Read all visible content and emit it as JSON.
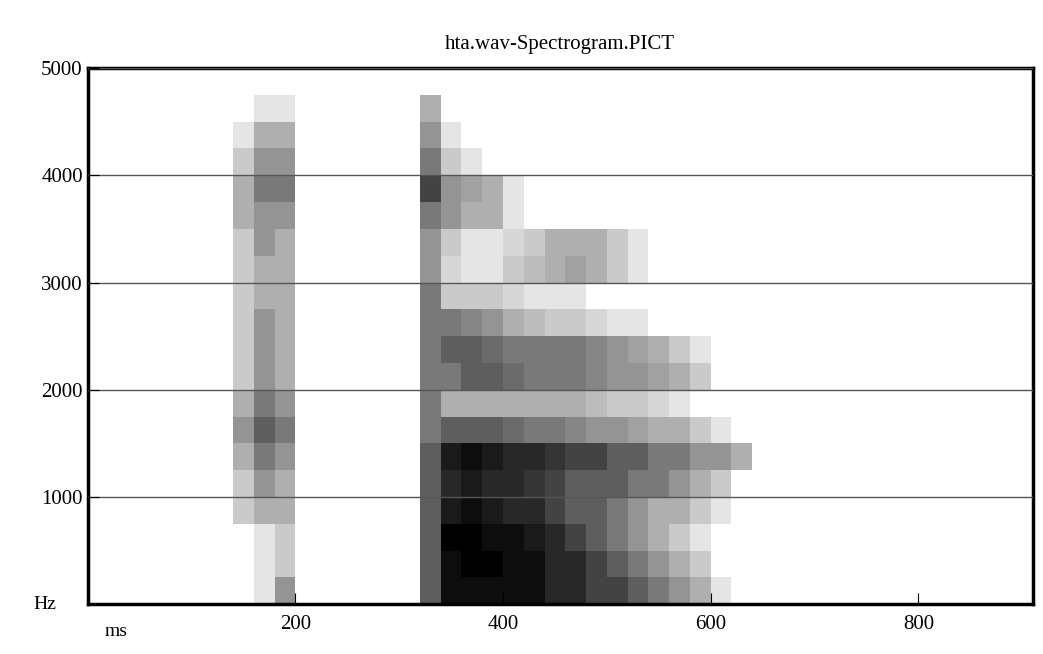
{
  "chart_data": {
    "type": "spectrogram",
    "title": "hta.wav-Spectrogram.PICT",
    "xlabel": "ms",
    "ylabel": "Hz",
    "xlim": [
      0,
      910
    ],
    "xticks": [
      200,
      400,
      600,
      800
    ],
    "ylim": [
      0,
      5000
    ],
    "yticks": [
      1000,
      2000,
      3000,
      4000,
      5000
    ],
    "grid": true,
    "time_edges": [
      140,
      160,
      180,
      200,
      220,
      240,
      260,
      280,
      300,
      320,
      340,
      360,
      380,
      400,
      420,
      440,
      460,
      480,
      500,
      520,
      540,
      560,
      580,
      600,
      620,
      640,
      660
    ],
    "freq_edges": [
      0,
      250,
      500,
      750,
      1000,
      1250,
      1500,
      1750,
      2000,
      2250,
      2500,
      2750,
      3000,
      3250,
      3500,
      3750,
      4000,
      4250,
      4500,
      4750
    ],
    "cells": [
      [
        0,
        0.1,
        0.4,
        0,
        0,
        0,
        0,
        0,
        0,
        0.6,
        0.9,
        0.9,
        0.9,
        0.9,
        0.9,
        0.8,
        0.8,
        0.7,
        0.7,
        0.6,
        0.5,
        0.4,
        0.3,
        0.1,
        0,
        0
      ],
      [
        0,
        0.1,
        0.2,
        0,
        0,
        0,
        0,
        0,
        0,
        0.6,
        0.9,
        0.95,
        0.95,
        0.9,
        0.9,
        0.8,
        0.8,
        0.7,
        0.6,
        0.5,
        0.4,
        0.3,
        0.2,
        0,
        0,
        0
      ],
      [
        0,
        0.1,
        0.2,
        0,
        0,
        0,
        0,
        0,
        0,
        0.6,
        0.95,
        0.95,
        0.9,
        0.9,
        0.85,
        0.8,
        0.7,
        0.6,
        0.5,
        0.4,
        0.3,
        0.2,
        0.1,
        0,
        0,
        0
      ],
      [
        0.2,
        0.3,
        0.3,
        0,
        0,
        0,
        0,
        0,
        0,
        0.6,
        0.85,
        0.9,
        0.85,
        0.8,
        0.8,
        0.7,
        0.6,
        0.6,
        0.5,
        0.4,
        0.3,
        0.3,
        0.2,
        0.1,
        0,
        0
      ],
      [
        0.2,
        0.4,
        0.3,
        0,
        0,
        0,
        0,
        0,
        0,
        0.6,
        0.8,
        0.85,
        0.8,
        0.8,
        0.75,
        0.7,
        0.6,
        0.6,
        0.6,
        0.5,
        0.5,
        0.4,
        0.3,
        0.2,
        0,
        0
      ],
      [
        0.3,
        0.5,
        0.4,
        0,
        0,
        0,
        0,
        0,
        0,
        0.6,
        0.85,
        0.9,
        0.85,
        0.8,
        0.8,
        0.75,
        0.7,
        0.7,
        0.6,
        0.6,
        0.5,
        0.5,
        0.4,
        0.4,
        0.3,
        0
      ],
      [
        0.4,
        0.6,
        0.5,
        0,
        0,
        0,
        0,
        0,
        0,
        0.5,
        0.6,
        0.6,
        0.6,
        0.55,
        0.5,
        0.5,
        0.45,
        0.4,
        0.4,
        0.35,
        0.3,
        0.3,
        0.2,
        0.1,
        0,
        0
      ],
      [
        0.3,
        0.5,
        0.4,
        0,
        0,
        0,
        0,
        0,
        0,
        0.5,
        0.3,
        0.3,
        0.3,
        0.3,
        0.3,
        0.3,
        0.3,
        0.25,
        0.2,
        0.2,
        0.15,
        0.1,
        0,
        0,
        0,
        0
      ],
      [
        0.2,
        0.4,
        0.3,
        0,
        0,
        0,
        0,
        0,
        0,
        0.5,
        0.5,
        0.6,
        0.6,
        0.55,
        0.5,
        0.5,
        0.5,
        0.45,
        0.4,
        0.4,
        0.35,
        0.3,
        0.2,
        0,
        0,
        0
      ],
      [
        0.2,
        0.4,
        0.3,
        0,
        0,
        0,
        0,
        0,
        0,
        0.5,
        0.6,
        0.6,
        0.55,
        0.5,
        0.5,
        0.5,
        0.5,
        0.45,
        0.4,
        0.35,
        0.3,
        0.2,
        0.1,
        0,
        0,
        0
      ],
      [
        0.2,
        0.4,
        0.3,
        0,
        0,
        0,
        0,
        0,
        0,
        0.5,
        0.5,
        0.45,
        0.4,
        0.3,
        0.25,
        0.2,
        0.2,
        0.15,
        0.1,
        0.1,
        0,
        0,
        0,
        0,
        0,
        0
      ],
      [
        0.2,
        0.3,
        0.3,
        0,
        0,
        0,
        0,
        0,
        0,
        0.5,
        0.2,
        0.2,
        0.2,
        0.15,
        0.1,
        0.1,
        0.1,
        0,
        0,
        0,
        0,
        0,
        0,
        0,
        0,
        0
      ],
      [
        0.2,
        0.3,
        0.3,
        0,
        0,
        0,
        0,
        0,
        0,
        0.4,
        0.15,
        0.1,
        0.1,
        0.2,
        0.25,
        0.3,
        0.35,
        0.3,
        0.2,
        0.1,
        0,
        0,
        0,
        0,
        0,
        0
      ],
      [
        0.2,
        0.4,
        0.3,
        0,
        0,
        0,
        0,
        0,
        0,
        0.4,
        0.2,
        0.1,
        0.1,
        0.15,
        0.2,
        0.3,
        0.3,
        0.3,
        0.2,
        0.1,
        0,
        0,
        0,
        0,
        0,
        0
      ],
      [
        0.3,
        0.4,
        0.4,
        0,
        0,
        0,
        0,
        0,
        0,
        0.5,
        0.4,
        0.3,
        0.3,
        0.1,
        0,
        0,
        0,
        0,
        0,
        0,
        0,
        0,
        0,
        0,
        0,
        0
      ],
      [
        0.3,
        0.5,
        0.5,
        0,
        0,
        0,
        0,
        0,
        0,
        0.7,
        0.4,
        0.35,
        0.3,
        0.1,
        0,
        0,
        0,
        0,
        0,
        0,
        0,
        0,
        0,
        0,
        0,
        0
      ],
      [
        0.2,
        0.4,
        0.4,
        0,
        0,
        0,
        0,
        0,
        0,
        0.5,
        0.2,
        0.1,
        0,
        0,
        0,
        0,
        0,
        0,
        0,
        0,
        0,
        0,
        0,
        0,
        0,
        0
      ],
      [
        0.1,
        0.3,
        0.3,
        0,
        0,
        0,
        0,
        0,
        0,
        0.4,
        0.1,
        0,
        0,
        0,
        0,
        0,
        0,
        0,
        0,
        0,
        0,
        0,
        0,
        0,
        0,
        0
      ],
      [
        0,
        0.1,
        0.1,
        0,
        0,
        0,
        0,
        0,
        0,
        0.3,
        0,
        0,
        0,
        0,
        0,
        0,
        0,
        0,
        0,
        0,
        0,
        0,
        0,
        0,
        0,
        0
      ]
    ]
  }
}
